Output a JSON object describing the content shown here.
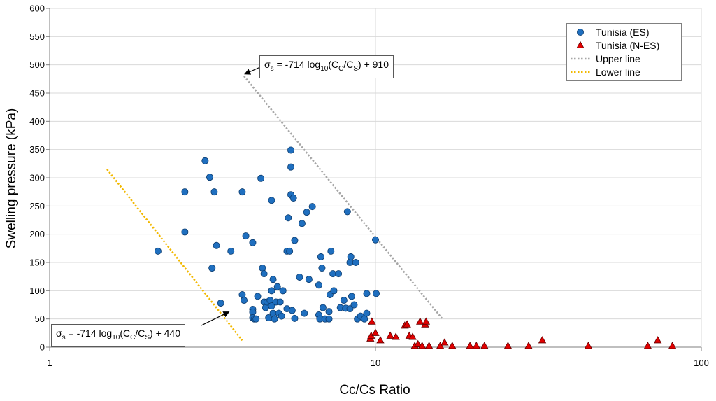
{
  "chart_data": {
    "type": "scatter",
    "x_scale": "log",
    "xlim": [
      1,
      100
    ],
    "ylim": [
      0,
      600
    ],
    "x_ticks": [
      "1",
      "10",
      "100"
    ],
    "y_ticks": [
      "0",
      "50",
      "100",
      "150",
      "200",
      "250",
      "300",
      "350",
      "400",
      "450",
      "500",
      "550",
      "600"
    ],
    "xlabel": "Cc/Cs Ratio",
    "ylabel": "Swelling pressure (kPa)",
    "grid": "vertical and horizontal major gridlines",
    "legend_position": "top-right",
    "colors": {
      "es_fill": "#1f6fbf",
      "es_stroke": "#0d3c6e",
      "nes_fill": "#e00000",
      "nes_stroke": "#600000",
      "upper_line": "#a6a6a6",
      "lower_line": "#f2b800",
      "grid": "#d9d9d9"
    },
    "series": [
      {
        "name": "Tunisia (ES)",
        "marker": "circle",
        "points": [
          [
            2.15,
            170
          ],
          [
            2.6,
            275
          ],
          [
            2.6,
            204
          ],
          [
            3.0,
            330
          ],
          [
            3.1,
            301
          ],
          [
            3.2,
            275
          ],
          [
            3.25,
            180
          ],
          [
            3.15,
            140
          ],
          [
            3.35,
            78
          ],
          [
            3.6,
            170
          ],
          [
            3.9,
            275
          ],
          [
            3.9,
            93
          ],
          [
            3.95,
            83
          ],
          [
            4.0,
            197
          ],
          [
            4.2,
            185
          ],
          [
            4.2,
            67
          ],
          [
            4.2,
            62
          ],
          [
            4.2,
            52
          ],
          [
            4.25,
            50
          ],
          [
            4.3,
            50
          ],
          [
            4.35,
            90
          ],
          [
            4.45,
            299
          ],
          [
            4.5,
            140
          ],
          [
            4.55,
            130
          ],
          [
            4.55,
            80
          ],
          [
            4.6,
            70
          ],
          [
            4.65,
            80
          ],
          [
            4.7,
            52
          ],
          [
            4.75,
            83
          ],
          [
            4.8,
            260
          ],
          [
            4.8,
            100
          ],
          [
            4.8,
            73
          ],
          [
            4.85,
            120
          ],
          [
            4.85,
            60
          ],
          [
            4.9,
            50
          ],
          [
            4.95,
            80
          ],
          [
            5.0,
            107
          ],
          [
            5.05,
            60
          ],
          [
            5.1,
            80
          ],
          [
            5.15,
            55
          ],
          [
            5.2,
            100
          ],
          [
            5.35,
            170
          ],
          [
            5.35,
            68
          ],
          [
            5.4,
            229
          ],
          [
            5.45,
            170
          ],
          [
            5.5,
            349
          ],
          [
            5.5,
            319
          ],
          [
            5.5,
            270
          ],
          [
            5.55,
            65
          ],
          [
            5.6,
            264
          ],
          [
            5.65,
            189
          ],
          [
            5.65,
            51
          ],
          [
            5.85,
            124
          ],
          [
            5.95,
            219
          ],
          [
            6.05,
            60
          ],
          [
            6.15,
            239
          ],
          [
            6.25,
            120
          ],
          [
            6.4,
            249
          ],
          [
            6.7,
            110
          ],
          [
            6.7,
            57
          ],
          [
            6.75,
            50
          ],
          [
            6.8,
            160
          ],
          [
            6.85,
            140
          ],
          [
            6.9,
            70
          ],
          [
            7.0,
            50
          ],
          [
            7.2,
            50
          ],
          [
            7.2,
            63
          ],
          [
            7.25,
            93
          ],
          [
            7.3,
            170
          ],
          [
            7.4,
            130
          ],
          [
            7.45,
            100
          ],
          [
            7.7,
            130
          ],
          [
            7.8,
            70
          ],
          [
            8.0,
            83
          ],
          [
            8.1,
            69
          ],
          [
            8.2,
            240
          ],
          [
            8.35,
            68
          ],
          [
            8.35,
            150
          ],
          [
            8.4,
            160
          ],
          [
            8.45,
            90
          ],
          [
            8.6,
            75
          ],
          [
            8.7,
            150
          ],
          [
            8.8,
            50
          ],
          [
            9.0,
            55
          ],
          [
            9.25,
            50
          ],
          [
            9.4,
            95
          ],
          [
            9.4,
            60
          ],
          [
            10.0,
            190
          ],
          [
            10.05,
            95
          ]
        ]
      },
      {
        "name": "Tunisia (N-ES)",
        "marker": "triangle",
        "points": [
          [
            9.65,
            15
          ],
          [
            9.7,
            20
          ],
          [
            9.75,
            45
          ],
          [
            10.0,
            25
          ],
          [
            10.35,
            12
          ],
          [
            11.1,
            20
          ],
          [
            11.55,
            18
          ],
          [
            12.3,
            38
          ],
          [
            12.5,
            40
          ],
          [
            12.7,
            20
          ],
          [
            13.0,
            18
          ],
          [
            13.2,
            2
          ],
          [
            13.5,
            5
          ],
          [
            13.7,
            45
          ],
          [
            13.9,
            2
          ],
          [
            14.2,
            40
          ],
          [
            14.3,
            45
          ],
          [
            14.6,
            2
          ],
          [
            15.8,
            2
          ],
          [
            16.3,
            8
          ],
          [
            17.2,
            2
          ],
          [
            19.5,
            2
          ],
          [
            20.4,
            2
          ],
          [
            21.6,
            2
          ],
          [
            25.5,
            2
          ],
          [
            29.5,
            2
          ],
          [
            32.5,
            12
          ],
          [
            45.0,
            2
          ],
          [
            68.5,
            2
          ],
          [
            73.5,
            12
          ],
          [
            81.5,
            2
          ]
        ]
      },
      {
        "name": "Upper line",
        "style": "dotted",
        "points": [
          [
            3.95,
            480
          ],
          [
            16.0,
            51
          ]
        ]
      },
      {
        "name": "Lower line",
        "style": "dotted",
        "points": [
          [
            1.5,
            315
          ],
          [
            3.9,
            12
          ]
        ]
      }
    ],
    "annotations": [
      {
        "id": "upper",
        "prefix": "σ",
        "prefix_sub": "s",
        "eq_main": " = -714 log",
        "log_base": "10",
        "paren_open": "(C",
        "num_sub": "C",
        "slash": "/C",
        "den_sub": "S",
        "tail": ") + 910",
        "arrow_to": [
          3.95,
          480
        ]
      },
      {
        "id": "lower",
        "prefix": "σ",
        "prefix_sub": "s",
        "eq_main": " = -714 log",
        "log_base": "10",
        "paren_open": "(C",
        "num_sub": "C",
        "slash": "/C",
        "den_sub": "S",
        "tail": ") + 440",
        "arrow_to": [
          3.5,
          60
        ]
      }
    ]
  }
}
